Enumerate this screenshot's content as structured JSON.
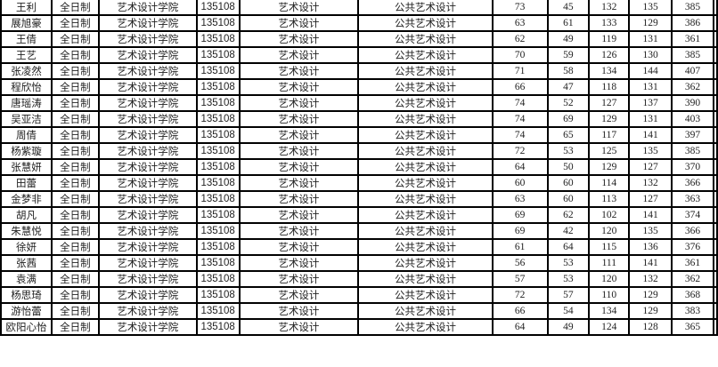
{
  "table": {
    "rows": [
      [
        "王利",
        "全日制",
        "艺术设计学院",
        "135108",
        "艺术设计",
        "公共艺术设计",
        "73",
        "45",
        "132",
        "135",
        "385"
      ],
      [
        "展旭豪",
        "全日制",
        "艺术设计学院",
        "135108",
        "艺术设计",
        "公共艺术设计",
        "63",
        "61",
        "133",
        "129",
        "386"
      ],
      [
        "王倩",
        "全日制",
        "艺术设计学院",
        "135108",
        "艺术设计",
        "公共艺术设计",
        "62",
        "49",
        "119",
        "131",
        "361"
      ],
      [
        "王艺",
        "全日制",
        "艺术设计学院",
        "135108",
        "艺术设计",
        "公共艺术设计",
        "70",
        "59",
        "126",
        "130",
        "385"
      ],
      [
        "张凌然",
        "全日制",
        "艺术设计学院",
        "135108",
        "艺术设计",
        "公共艺术设计",
        "71",
        "58",
        "134",
        "144",
        "407"
      ],
      [
        "程欣怡",
        "全日制",
        "艺术设计学院",
        "135108",
        "艺术设计",
        "公共艺术设计",
        "66",
        "47",
        "118",
        "131",
        "362"
      ],
      [
        "唐瑶涛",
        "全日制",
        "艺术设计学院",
        "135108",
        "艺术设计",
        "公共艺术设计",
        "74",
        "52",
        "127",
        "137",
        "390"
      ],
      [
        "吴亚洁",
        "全日制",
        "艺术设计学院",
        "135108",
        "艺术设计",
        "公共艺术设计",
        "74",
        "69",
        "129",
        "131",
        "403"
      ],
      [
        "周倩",
        "全日制",
        "艺术设计学院",
        "135108",
        "艺术设计",
        "公共艺术设计",
        "74",
        "65",
        "117",
        "141",
        "397"
      ],
      [
        "杨紫璇",
        "全日制",
        "艺术设计学院",
        "135108",
        "艺术设计",
        "公共艺术设计",
        "72",
        "53",
        "125",
        "135",
        "385"
      ],
      [
        "张慧妍",
        "全日制",
        "艺术设计学院",
        "135108",
        "艺术设计",
        "公共艺术设计",
        "64",
        "50",
        "129",
        "127",
        "370"
      ],
      [
        "田蕾",
        "全日制",
        "艺术设计学院",
        "135108",
        "艺术设计",
        "公共艺术设计",
        "60",
        "60",
        "114",
        "132",
        "366"
      ],
      [
        "金梦非",
        "全日制",
        "艺术设计学院",
        "135108",
        "艺术设计",
        "公共艺术设计",
        "63",
        "60",
        "113",
        "127",
        "363"
      ],
      [
        "胡凡",
        "全日制",
        "艺术设计学院",
        "135108",
        "艺术设计",
        "公共艺术设计",
        "69",
        "62",
        "102",
        "141",
        "374"
      ],
      [
        "朱慧悦",
        "全日制",
        "艺术设计学院",
        "135108",
        "艺术设计",
        "公共艺术设计",
        "69",
        "42",
        "120",
        "135",
        "366"
      ],
      [
        "徐妍",
        "全日制",
        "艺术设计学院",
        "135108",
        "艺术设计",
        "公共艺术设计",
        "61",
        "64",
        "115",
        "136",
        "376"
      ],
      [
        "张茜",
        "全日制",
        "艺术设计学院",
        "135108",
        "艺术设计",
        "公共艺术设计",
        "56",
        "53",
        "111",
        "141",
        "361"
      ],
      [
        "袁满",
        "全日制",
        "艺术设计学院",
        "135108",
        "艺术设计",
        "公共艺术设计",
        "57",
        "53",
        "120",
        "132",
        "362"
      ],
      [
        "杨思琦",
        "全日制",
        "艺术设计学院",
        "135108",
        "艺术设计",
        "公共艺术设计",
        "72",
        "57",
        "110",
        "129",
        "368"
      ],
      [
        "游怡蕾",
        "全日制",
        "艺术设计学院",
        "135108",
        "艺术设计",
        "公共艺术设计",
        "66",
        "54",
        "134",
        "129",
        "383"
      ],
      [
        "欧阳心怡",
        "全日制",
        "艺术设计学院",
        "135108",
        "艺术设计",
        "公共艺术设计",
        "64",
        "49",
        "124",
        "128",
        "365"
      ]
    ]
  }
}
